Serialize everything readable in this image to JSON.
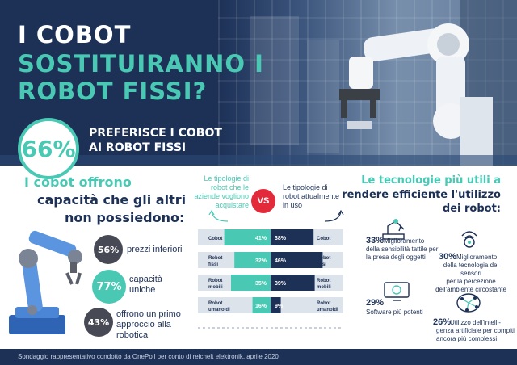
{
  "header": {
    "title_line1": "I COBOT",
    "title_line2": "SOSTITUIRANNO I",
    "title_line3": "ROBOT FISSI?",
    "highlight_pct": "66%",
    "highlight_text_line1": "PREFERISCE I COBOT",
    "highlight_text_line2": "AI ROBOT FISSI"
  },
  "capabilities": {
    "title_line1": "I cobot offrono",
    "title_line2": "capacità che gli altri",
    "title_line3": "non possiedono:",
    "items": [
      {
        "pct": "56%",
        "text_line1": "prezzi inferiori",
        "text_line2": "",
        "text_line3": ""
      },
      {
        "pct": "77%",
        "text_line1": "capacità",
        "text_line2": "uniche",
        "text_line3": ""
      },
      {
        "pct": "43%",
        "text_line1": "offrono un primo",
        "text_line2": "approccio alla",
        "text_line3": "robotica"
      }
    ]
  },
  "comparison": {
    "left_label_line1": "Le tipologie di",
    "left_label_line2": "robot che le",
    "left_label_line3": "aziende vogliono",
    "left_label_line4": "acquistare",
    "vs": "VS",
    "right_label_line1": "Le tipologie di",
    "right_label_line2": "robot attualmente",
    "right_label_line3": "in uso"
  },
  "chart_data": {
    "type": "bar",
    "categories": [
      "Cobot",
      "Robot fissi",
      "Robot mobili",
      "Robot umanoidi"
    ],
    "category_lines": [
      [
        "Cobot"
      ],
      [
        "Robot",
        "fissi"
      ],
      [
        "Robot",
        "mobili"
      ],
      [
        "Robot",
        "umanoidi"
      ]
    ],
    "series": [
      {
        "values": [
          41,
          32,
          35,
          16
        ],
        "labels": [
          "41%",
          "32%",
          "35%",
          "16%"
        ],
        "color": "#49c9b4"
      },
      {
        "values": [
          38,
          46,
          39,
          9
        ],
        "labels": [
          "38%",
          "46%",
          "39%",
          "9%"
        ],
        "color": "#1d3157"
      }
    ]
  },
  "technologies": {
    "title_line1": "Le tecnologie più utili a",
    "title_line2": "rendere efficiente l'utilizzo",
    "title_line3": "dei robot:",
    "items": [
      {
        "pct": "33%",
        "lines": [
          "Miglioramento",
          "della sensibilità tattile per",
          "la presa degli oggetti"
        ]
      },
      {
        "pct": "30%",
        "lines": [
          "Miglioramento",
          "della tecnologia dei sensori",
          "per la percezione",
          "dell'ambiente circostante"
        ]
      },
      {
        "pct": "29%",
        "lines": [
          "Software più potenti"
        ]
      },
      {
        "pct": "26%",
        "lines": [
          "Utilizzo dell'intelli-",
          "genza artificiale per compiti",
          "ancora più complessi"
        ]
      }
    ]
  },
  "footer": {
    "text": "Sondaggio rappresentativo condotto da OnePoll per conto di reichelt elektronik, aprile 2020"
  },
  "colors": {
    "navy": "#1d3157",
    "teal": "#49c9b4",
    "red": "#e32a3a",
    "gray": "#474a55"
  }
}
